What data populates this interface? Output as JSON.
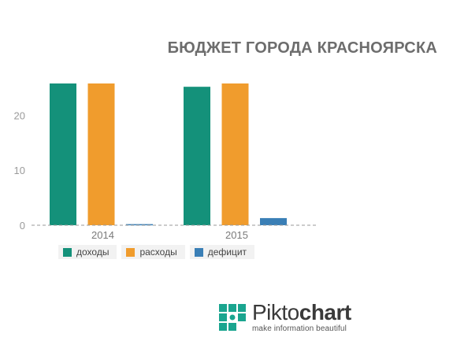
{
  "chart_data": {
    "type": "bar",
    "title": "БЮДЖЕТ ГОРОДА КРАСНОЯРСКА",
    "categories": [
      "2014",
      "2015"
    ],
    "series": [
      {
        "name": "доходы",
        "color": "#14917a",
        "values": [
          25.8,
          25.2
        ]
      },
      {
        "name": "расходы",
        "color": "#f09c2d",
        "values": [
          25.8,
          25.8
        ]
      },
      {
        "name": "дефицит",
        "color": "#3a7fb6",
        "values": [
          0.2,
          1.3
        ]
      }
    ],
    "ylim": [
      0,
      26
    ],
    "yticks": [
      0,
      10,
      20
    ],
    "grid": false,
    "legend_position": "bottom-left"
  },
  "logo": {
    "name_light": "Pikto",
    "name_bold": "chart",
    "tagline": "make information beautiful"
  }
}
